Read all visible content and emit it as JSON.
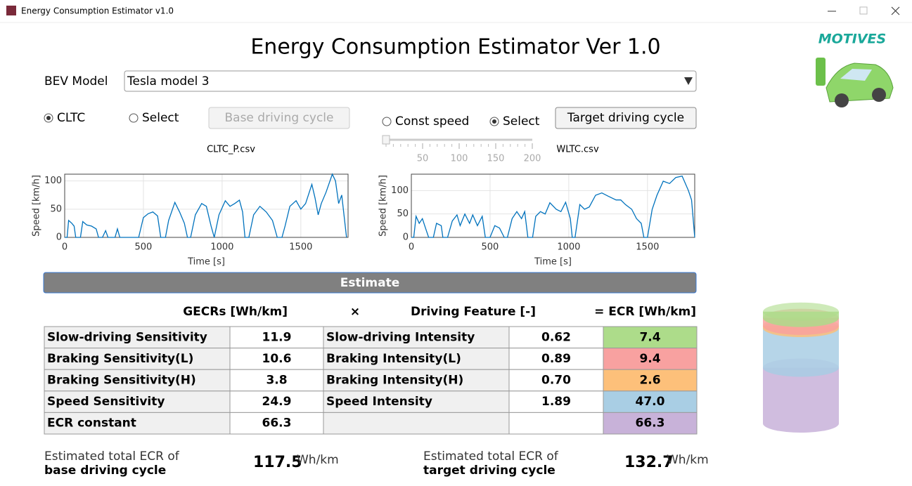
{
  "window": {
    "title": "Energy Consumption Estimator v1.0"
  },
  "header": {
    "title": "Energy Consumption Estimator Ver 1.0",
    "logo": "MOTIVES"
  },
  "controls": {
    "bev_label": "BEV Model",
    "bev_value": "Tesla model 3",
    "base_options": [
      "CLTC",
      "Select"
    ],
    "base_selected": 0,
    "base_button": "Base driving cycle",
    "target_options": [
      "Const speed",
      "Select"
    ],
    "target_selected": 1,
    "target_button": "Target driving cycle",
    "slider": {
      "range": [
        0,
        200
      ],
      "ticks": [
        50,
        100,
        150,
        200
      ],
      "value": 0
    }
  },
  "chart_data": [
    {
      "type": "line",
      "title": "CLTC_P.csv",
      "xlabel": "Time [s]",
      "ylabel": "Speed [km/h]",
      "color": "#0072bd",
      "grid": true,
      "xlim": [
        0,
        1800
      ],
      "xticks": [
        0,
        500,
        1000,
        1500
      ],
      "ylim": [
        0,
        112
      ],
      "yticks": [
        0,
        50,
        100
      ],
      "x": [
        0,
        15,
        25,
        45,
        60,
        70,
        100,
        115,
        140,
        170,
        200,
        215,
        240,
        260,
        275,
        320,
        335,
        350,
        470,
        500,
        530,
        560,
        590,
        610,
        640,
        660,
        700,
        730,
        760,
        780,
        800,
        830,
        870,
        900,
        930,
        950,
        980,
        1020,
        1050,
        1080,
        1110,
        1130,
        1145,
        1170,
        1200,
        1240,
        1280,
        1320,
        1350,
        1380,
        1400,
        1430,
        1470,
        1500,
        1530,
        1570,
        1590,
        1610,
        1630,
        1660,
        1700,
        1720,
        1740,
        1760,
        1790
      ],
      "values": [
        0,
        0,
        30,
        25,
        20,
        0,
        0,
        28,
        22,
        20,
        15,
        0,
        0,
        12,
        0,
        0,
        15,
        0,
        0,
        35,
        42,
        45,
        38,
        0,
        0,
        30,
        62,
        45,
        25,
        0,
        0,
        40,
        60,
        55,
        20,
        0,
        40,
        65,
        55,
        60,
        66,
        45,
        0,
        0,
        40,
        55,
        45,
        30,
        0,
        0,
        20,
        55,
        65,
        50,
        60,
        94,
        70,
        40,
        60,
        80,
        112,
        100,
        60,
        75,
        0
      ]
    },
    {
      "type": "line",
      "title": "WLTC.csv",
      "xlabel": "Time [s]",
      "ylabel": "Speed [km/h]",
      "color": "#0072bd",
      "grid": true,
      "xlim": [
        0,
        1800
      ],
      "xticks": [
        0,
        500,
        1000,
        1500
      ],
      "ylim": [
        0,
        135
      ],
      "yticks": [
        0,
        50,
        100
      ],
      "x": [
        0,
        15,
        30,
        50,
        70,
        90,
        110,
        140,
        160,
        190,
        200,
        230,
        260,
        290,
        310,
        340,
        370,
        390,
        420,
        450,
        470,
        500,
        530,
        560,
        590,
        610,
        640,
        670,
        700,
        720,
        740,
        770,
        790,
        820,
        850,
        880,
        920,
        950,
        980,
        1010,
        1022,
        1040,
        1070,
        1100,
        1130,
        1170,
        1210,
        1250,
        1300,
        1330,
        1360,
        1400,
        1430,
        1460,
        1477,
        1500,
        1530,
        1560,
        1600,
        1640,
        1680,
        1720,
        1760,
        1780,
        1800
      ],
      "values": [
        0,
        0,
        45,
        30,
        40,
        20,
        0,
        0,
        30,
        25,
        0,
        0,
        35,
        48,
        25,
        50,
        30,
        48,
        25,
        45,
        0,
        0,
        25,
        20,
        0,
        0,
        40,
        55,
        40,
        55,
        0,
        0,
        45,
        55,
        50,
        74,
        60,
        55,
        75,
        40,
        0,
        0,
        70,
        60,
        65,
        90,
        95,
        88,
        80,
        80,
        70,
        60,
        40,
        30,
        0,
        0,
        60,
        90,
        120,
        115,
        128,
        131,
        100,
        80,
        0
      ]
    }
  ],
  "estimate_button": "Estimate",
  "table": {
    "headers": [
      "GECRs [Wh/km]",
      "×",
      "Driving Feature [-]",
      "= ECR [Wh/km]"
    ],
    "rows": [
      {
        "gecr_label": "Slow-driving Sensitivity",
        "gecr": "11.9",
        "feature_label": "Slow-driving Intensity",
        "feature": "0.62",
        "ecr": "7.4",
        "color": "#addc8a"
      },
      {
        "gecr_label": "Braking Sensitivity(L)",
        "gecr": "10.6",
        "feature_label": "Braking Intensity(L)",
        "feature": "0.89",
        "ecr": "9.4",
        "color": "#f8a1a0"
      },
      {
        "gecr_label": "Braking Sensitivity(H)",
        "gecr": "3.8",
        "feature_label": "Braking Intensity(H)",
        "feature": "0.70",
        "ecr": "2.6",
        "color": "#fdc07a"
      },
      {
        "gecr_label": "Speed Sensitivity",
        "gecr": "24.9",
        "feature_label": "Speed Intensity",
        "feature": "1.89",
        "ecr": "47.0",
        "color": "#a9cee4"
      },
      {
        "gecr_label": "ECR constant",
        "gecr": "66.3",
        "ecr": "66.3",
        "color": "#c8b2d9"
      }
    ]
  },
  "totals": [
    {
      "line1": "Estimated total ECR of",
      "line2": "base driving cycle",
      "value": "117.5",
      "unit": "Wh/km"
    },
    {
      "line1": "Estimated total ECR of",
      "line2": "target driving cycle",
      "value": "132.7",
      "unit": "Wh/km"
    }
  ]
}
